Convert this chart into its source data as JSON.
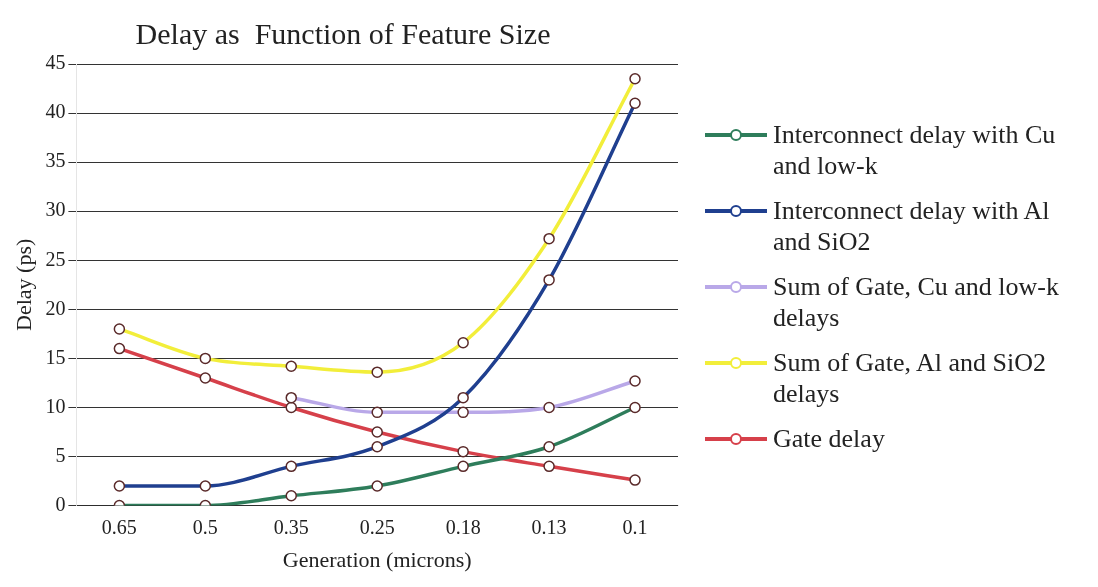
{
  "chart_data": {
    "type": "line",
    "title": "Delay as  Function of Feature Size",
    "xlabel": "Generation (microns)",
    "ylabel": "Delay (ps)",
    "categories": [
      "0.65",
      "0.5",
      "0.35",
      "0.25",
      "0.18",
      "0.13",
      "0.1"
    ],
    "series": [
      {
        "name": "Interconnect delay with Cu and low-k",
        "color": "#2e7d5b",
        "values": [
          0,
          0,
          1,
          2,
          4,
          6,
          10
        ]
      },
      {
        "name": "Interconnect delay with Al and SiO2",
        "color": "#1f3f8f",
        "values": [
          2,
          2,
          4,
          6,
          11,
          23,
          41
        ]
      },
      {
        "name": "Sum of Gate, Cu and low-k delays",
        "color": "#b9a8e8",
        "values": [
          null,
          null,
          11,
          9.5,
          9.5,
          10,
          12.7
        ]
      },
      {
        "name": "Sum of Gate, Al and SiO2 delays",
        "color": "#f2ee3a",
        "values": [
          18,
          15,
          14.2,
          13.6,
          16.6,
          27.2,
          43.5
        ]
      },
      {
        "name": "Gate delay",
        "color": "#d6404a",
        "values": [
          16,
          13,
          10,
          7.5,
          5.5,
          4,
          2.6
        ]
      }
    ],
    "ylim": [
      0,
      45
    ],
    "yticks": [
      0,
      5,
      10,
      15,
      20,
      25,
      30,
      35,
      40,
      45
    ],
    "grid": "y",
    "legend": "right",
    "marker": "circle",
    "line_style": "solid"
  }
}
